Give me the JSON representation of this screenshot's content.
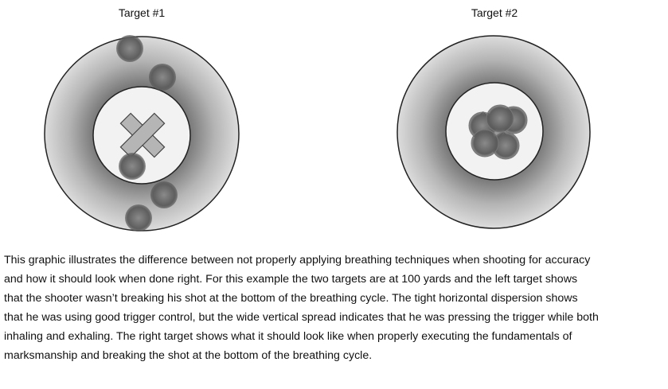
{
  "targets": [
    {
      "title": "Target #1",
      "shots": 5,
      "grouping": "tight horizontal, wide vertical"
    },
    {
      "title": "Target #2",
      "shots": 5,
      "grouping": "tight cluster at center"
    }
  ],
  "caption": "This graphic illustrates the difference between not properly applying breathing techniques when shooting for accuracy\nand how it should look when done right.  For this example the two targets are at 100 yards and the left target shows\nthat the shooter wasn’t breaking his shot at the bottom of the breathing cycle.  The tight horizontal dispersion shows\nthat he was using good trigger control, but the wide vertical spread indicates that he was pressing the trigger while both\ninhaling and exhaling.   The right target shows what it should look like when properly executing the fundamentals of\nmarksmanship and breaking the shot at the bottom of the breathing cycle."
}
